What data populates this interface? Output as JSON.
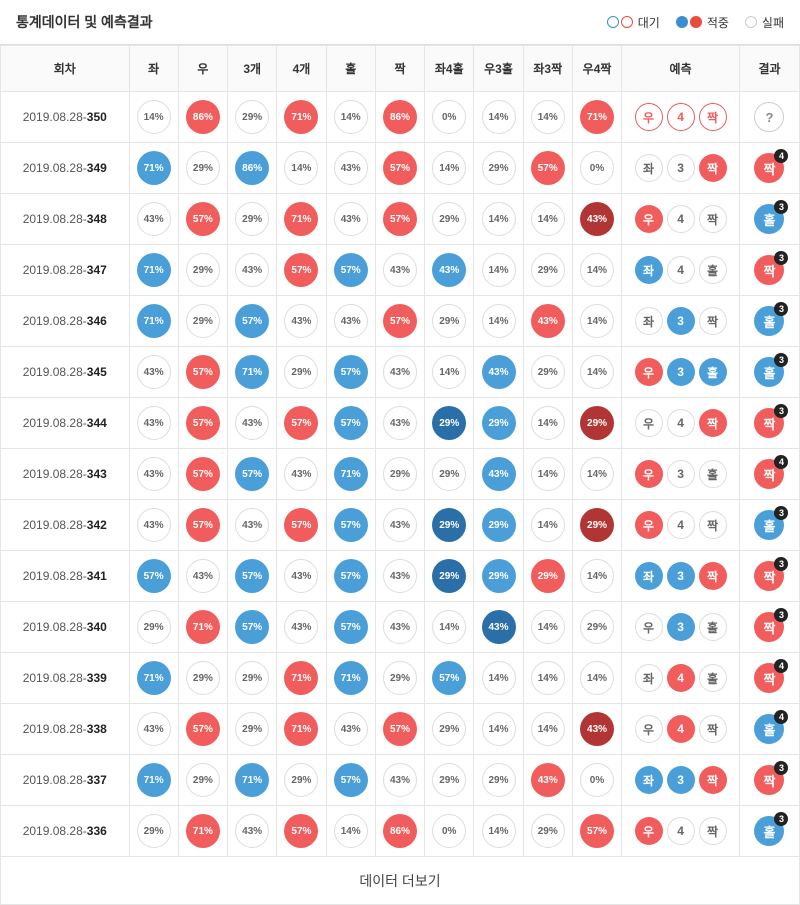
{
  "header": {
    "title": "통계데이터 및 예측결과",
    "legend": [
      {
        "label": "대기",
        "circles": [
          "outline-blue",
          "outline-red"
        ]
      },
      {
        "label": "적중",
        "circles": [
          "fill-blue",
          "fill-red"
        ]
      },
      {
        "label": "실패",
        "circles": [
          "outline-gray"
        ]
      }
    ]
  },
  "columns": {
    "round": "회차",
    "left": "좌",
    "right": "우",
    "three": "3개",
    "four": "4개",
    "odd": "홀",
    "even": "짝",
    "l4o": "좌4홀",
    "r3o": "우3홀",
    "l3e": "좌3짝",
    "r4e": "우4짝",
    "pred": "예측",
    "res": "결과"
  },
  "footer": {
    "more": "데이터 더보기"
  },
  "colors": {
    "red": "#f15c5c",
    "blue": "#4a9fd8",
    "darkred": "#b23535",
    "darkblue": "#2a6fa8",
    "border": "#e5e5e5",
    "badge_bg": "#222222"
  },
  "rows": [
    {
      "date": "2019.08.28",
      "num": "350",
      "cells": [
        {
          "v": "14%",
          "s": "plain"
        },
        {
          "v": "86%",
          "s": "red"
        },
        {
          "v": "29%",
          "s": "plain"
        },
        {
          "v": "71%",
          "s": "red"
        },
        {
          "v": "14%",
          "s": "plain"
        },
        {
          "v": "86%",
          "s": "red"
        },
        {
          "v": "0%",
          "s": "plain"
        },
        {
          "v": "14%",
          "s": "plain"
        },
        {
          "v": "14%",
          "s": "plain"
        },
        {
          "v": "71%",
          "s": "red"
        }
      ],
      "pred": [
        {
          "t": "우",
          "s": "red-outline"
        },
        {
          "t": "4",
          "s": "red-outline"
        },
        {
          "t": "짝",
          "s": "red-outline"
        }
      ],
      "res": {
        "t": "?",
        "s": "plain",
        "badge": ""
      }
    },
    {
      "date": "2019.08.28",
      "num": "349",
      "cells": [
        {
          "v": "71%",
          "s": "blue"
        },
        {
          "v": "29%",
          "s": "plain"
        },
        {
          "v": "86%",
          "s": "blue"
        },
        {
          "v": "14%",
          "s": "plain"
        },
        {
          "v": "43%",
          "s": "plain"
        },
        {
          "v": "57%",
          "s": "red"
        },
        {
          "v": "14%",
          "s": "plain"
        },
        {
          "v": "29%",
          "s": "plain"
        },
        {
          "v": "57%",
          "s": "red"
        },
        {
          "v": "0%",
          "s": "plain"
        }
      ],
      "pred": [
        {
          "t": "좌",
          "s": "plain"
        },
        {
          "t": "3",
          "s": "plain"
        },
        {
          "t": "짝",
          "s": "red-fill"
        }
      ],
      "res": {
        "t": "짝",
        "s": "red",
        "badge": "4"
      }
    },
    {
      "date": "2019.08.28",
      "num": "348",
      "cells": [
        {
          "v": "43%",
          "s": "plain"
        },
        {
          "v": "57%",
          "s": "red"
        },
        {
          "v": "29%",
          "s": "plain"
        },
        {
          "v": "71%",
          "s": "red"
        },
        {
          "v": "43%",
          "s": "plain"
        },
        {
          "v": "57%",
          "s": "red"
        },
        {
          "v": "29%",
          "s": "plain"
        },
        {
          "v": "14%",
          "s": "plain"
        },
        {
          "v": "14%",
          "s": "plain"
        },
        {
          "v": "43%",
          "s": "darkred"
        }
      ],
      "pred": [
        {
          "t": "우",
          "s": "red-fill"
        },
        {
          "t": "4",
          "s": "plain"
        },
        {
          "t": "짝",
          "s": "plain"
        }
      ],
      "res": {
        "t": "홀",
        "s": "blue",
        "badge": "3"
      }
    },
    {
      "date": "2019.08.28",
      "num": "347",
      "cells": [
        {
          "v": "71%",
          "s": "blue"
        },
        {
          "v": "29%",
          "s": "plain"
        },
        {
          "v": "43%",
          "s": "plain"
        },
        {
          "v": "57%",
          "s": "red"
        },
        {
          "v": "57%",
          "s": "blue"
        },
        {
          "v": "43%",
          "s": "plain"
        },
        {
          "v": "43%",
          "s": "blue"
        },
        {
          "v": "14%",
          "s": "plain"
        },
        {
          "v": "29%",
          "s": "plain"
        },
        {
          "v": "14%",
          "s": "plain"
        }
      ],
      "pred": [
        {
          "t": "좌",
          "s": "blue-fill"
        },
        {
          "t": "4",
          "s": "plain"
        },
        {
          "t": "홀",
          "s": "plain"
        }
      ],
      "res": {
        "t": "짝",
        "s": "red",
        "badge": "3"
      }
    },
    {
      "date": "2019.08.28",
      "num": "346",
      "cells": [
        {
          "v": "71%",
          "s": "blue"
        },
        {
          "v": "29%",
          "s": "plain"
        },
        {
          "v": "57%",
          "s": "blue"
        },
        {
          "v": "43%",
          "s": "plain"
        },
        {
          "v": "43%",
          "s": "plain"
        },
        {
          "v": "57%",
          "s": "red"
        },
        {
          "v": "29%",
          "s": "plain"
        },
        {
          "v": "14%",
          "s": "plain"
        },
        {
          "v": "43%",
          "s": "red"
        },
        {
          "v": "14%",
          "s": "plain"
        }
      ],
      "pred": [
        {
          "t": "좌",
          "s": "plain"
        },
        {
          "t": "3",
          "s": "blue-fill"
        },
        {
          "t": "짝",
          "s": "plain"
        }
      ],
      "res": {
        "t": "홀",
        "s": "blue",
        "badge": "3"
      }
    },
    {
      "date": "2019.08.28",
      "num": "345",
      "cells": [
        {
          "v": "43%",
          "s": "plain"
        },
        {
          "v": "57%",
          "s": "red"
        },
        {
          "v": "71%",
          "s": "blue"
        },
        {
          "v": "29%",
          "s": "plain"
        },
        {
          "v": "57%",
          "s": "blue"
        },
        {
          "v": "43%",
          "s": "plain"
        },
        {
          "v": "14%",
          "s": "plain"
        },
        {
          "v": "43%",
          "s": "blue"
        },
        {
          "v": "29%",
          "s": "plain"
        },
        {
          "v": "14%",
          "s": "plain"
        }
      ],
      "pred": [
        {
          "t": "우",
          "s": "red-fill"
        },
        {
          "t": "3",
          "s": "blue-fill"
        },
        {
          "t": "홀",
          "s": "blue-fill"
        }
      ],
      "res": {
        "t": "홀",
        "s": "blue",
        "badge": "3"
      }
    },
    {
      "date": "2019.08.28",
      "num": "344",
      "cells": [
        {
          "v": "43%",
          "s": "plain"
        },
        {
          "v": "57%",
          "s": "red"
        },
        {
          "v": "43%",
          "s": "plain"
        },
        {
          "v": "57%",
          "s": "red"
        },
        {
          "v": "57%",
          "s": "blue"
        },
        {
          "v": "43%",
          "s": "plain"
        },
        {
          "v": "29%",
          "s": "darkblue"
        },
        {
          "v": "29%",
          "s": "blue"
        },
        {
          "v": "14%",
          "s": "plain"
        },
        {
          "v": "29%",
          "s": "darkred"
        }
      ],
      "pred": [
        {
          "t": "우",
          "s": "plain"
        },
        {
          "t": "4",
          "s": "plain"
        },
        {
          "t": "짝",
          "s": "red-fill"
        }
      ],
      "res": {
        "t": "짝",
        "s": "red",
        "badge": "3"
      }
    },
    {
      "date": "2019.08.28",
      "num": "343",
      "cells": [
        {
          "v": "43%",
          "s": "plain"
        },
        {
          "v": "57%",
          "s": "red"
        },
        {
          "v": "57%",
          "s": "blue"
        },
        {
          "v": "43%",
          "s": "plain"
        },
        {
          "v": "71%",
          "s": "blue"
        },
        {
          "v": "29%",
          "s": "plain"
        },
        {
          "v": "29%",
          "s": "plain"
        },
        {
          "v": "43%",
          "s": "blue"
        },
        {
          "v": "14%",
          "s": "plain"
        },
        {
          "v": "14%",
          "s": "plain"
        }
      ],
      "pred": [
        {
          "t": "우",
          "s": "red-fill"
        },
        {
          "t": "3",
          "s": "plain"
        },
        {
          "t": "홀",
          "s": "plain"
        }
      ],
      "res": {
        "t": "짝",
        "s": "red",
        "badge": "4"
      }
    },
    {
      "date": "2019.08.28",
      "num": "342",
      "cells": [
        {
          "v": "43%",
          "s": "plain"
        },
        {
          "v": "57%",
          "s": "red"
        },
        {
          "v": "43%",
          "s": "plain"
        },
        {
          "v": "57%",
          "s": "red"
        },
        {
          "v": "57%",
          "s": "blue"
        },
        {
          "v": "43%",
          "s": "plain"
        },
        {
          "v": "29%",
          "s": "darkblue"
        },
        {
          "v": "29%",
          "s": "blue"
        },
        {
          "v": "14%",
          "s": "plain"
        },
        {
          "v": "29%",
          "s": "darkred"
        }
      ],
      "pred": [
        {
          "t": "우",
          "s": "red-fill"
        },
        {
          "t": "4",
          "s": "plain"
        },
        {
          "t": "짝",
          "s": "plain"
        }
      ],
      "res": {
        "t": "홀",
        "s": "blue",
        "badge": "3"
      }
    },
    {
      "date": "2019.08.28",
      "num": "341",
      "cells": [
        {
          "v": "57%",
          "s": "blue"
        },
        {
          "v": "43%",
          "s": "plain"
        },
        {
          "v": "57%",
          "s": "blue"
        },
        {
          "v": "43%",
          "s": "plain"
        },
        {
          "v": "57%",
          "s": "blue"
        },
        {
          "v": "43%",
          "s": "plain"
        },
        {
          "v": "29%",
          "s": "darkblue"
        },
        {
          "v": "29%",
          "s": "blue"
        },
        {
          "v": "29%",
          "s": "red"
        },
        {
          "v": "14%",
          "s": "plain"
        }
      ],
      "pred": [
        {
          "t": "좌",
          "s": "blue-fill"
        },
        {
          "t": "3",
          "s": "blue-fill"
        },
        {
          "t": "짝",
          "s": "red-fill"
        }
      ],
      "res": {
        "t": "짝",
        "s": "red",
        "badge": "3"
      }
    },
    {
      "date": "2019.08.28",
      "num": "340",
      "cells": [
        {
          "v": "29%",
          "s": "plain"
        },
        {
          "v": "71%",
          "s": "red"
        },
        {
          "v": "57%",
          "s": "blue"
        },
        {
          "v": "43%",
          "s": "plain"
        },
        {
          "v": "57%",
          "s": "blue"
        },
        {
          "v": "43%",
          "s": "plain"
        },
        {
          "v": "14%",
          "s": "plain"
        },
        {
          "v": "43%",
          "s": "darkblue"
        },
        {
          "v": "14%",
          "s": "plain"
        },
        {
          "v": "29%",
          "s": "plain"
        }
      ],
      "pred": [
        {
          "t": "우",
          "s": "plain"
        },
        {
          "t": "3",
          "s": "blue-fill"
        },
        {
          "t": "홀",
          "s": "plain"
        }
      ],
      "res": {
        "t": "짝",
        "s": "red",
        "badge": "3"
      }
    },
    {
      "date": "2019.08.28",
      "num": "339",
      "cells": [
        {
          "v": "71%",
          "s": "blue"
        },
        {
          "v": "29%",
          "s": "plain"
        },
        {
          "v": "29%",
          "s": "plain"
        },
        {
          "v": "71%",
          "s": "red"
        },
        {
          "v": "71%",
          "s": "blue"
        },
        {
          "v": "29%",
          "s": "plain"
        },
        {
          "v": "57%",
          "s": "blue"
        },
        {
          "v": "14%",
          "s": "plain"
        },
        {
          "v": "14%",
          "s": "plain"
        },
        {
          "v": "14%",
          "s": "plain"
        }
      ],
      "pred": [
        {
          "t": "좌",
          "s": "plain"
        },
        {
          "t": "4",
          "s": "red-fill"
        },
        {
          "t": "홀",
          "s": "plain"
        }
      ],
      "res": {
        "t": "짝",
        "s": "red",
        "badge": "4"
      }
    },
    {
      "date": "2019.08.28",
      "num": "338",
      "cells": [
        {
          "v": "43%",
          "s": "plain"
        },
        {
          "v": "57%",
          "s": "red"
        },
        {
          "v": "29%",
          "s": "plain"
        },
        {
          "v": "71%",
          "s": "red"
        },
        {
          "v": "43%",
          "s": "plain"
        },
        {
          "v": "57%",
          "s": "red"
        },
        {
          "v": "29%",
          "s": "plain"
        },
        {
          "v": "14%",
          "s": "plain"
        },
        {
          "v": "14%",
          "s": "plain"
        },
        {
          "v": "43%",
          "s": "darkred"
        }
      ],
      "pred": [
        {
          "t": "우",
          "s": "plain"
        },
        {
          "t": "4",
          "s": "red-fill"
        },
        {
          "t": "짝",
          "s": "plain"
        }
      ],
      "res": {
        "t": "홀",
        "s": "blue",
        "badge": "4"
      }
    },
    {
      "date": "2019.08.28",
      "num": "337",
      "cells": [
        {
          "v": "71%",
          "s": "blue"
        },
        {
          "v": "29%",
          "s": "plain"
        },
        {
          "v": "71%",
          "s": "blue"
        },
        {
          "v": "29%",
          "s": "plain"
        },
        {
          "v": "57%",
          "s": "blue"
        },
        {
          "v": "43%",
          "s": "plain"
        },
        {
          "v": "29%",
          "s": "plain"
        },
        {
          "v": "29%",
          "s": "plain"
        },
        {
          "v": "43%",
          "s": "red"
        },
        {
          "v": "0%",
          "s": "plain"
        }
      ],
      "pred": [
        {
          "t": "좌",
          "s": "blue-fill"
        },
        {
          "t": "3",
          "s": "blue-fill"
        },
        {
          "t": "짝",
          "s": "red-fill"
        }
      ],
      "res": {
        "t": "짝",
        "s": "red",
        "badge": "3"
      }
    },
    {
      "date": "2019.08.28",
      "num": "336",
      "cells": [
        {
          "v": "29%",
          "s": "plain"
        },
        {
          "v": "71%",
          "s": "red"
        },
        {
          "v": "43%",
          "s": "plain"
        },
        {
          "v": "57%",
          "s": "red"
        },
        {
          "v": "14%",
          "s": "plain"
        },
        {
          "v": "86%",
          "s": "red"
        },
        {
          "v": "0%",
          "s": "plain"
        },
        {
          "v": "14%",
          "s": "plain"
        },
        {
          "v": "29%",
          "s": "plain"
        },
        {
          "v": "57%",
          "s": "red"
        }
      ],
      "pred": [
        {
          "t": "우",
          "s": "red-fill"
        },
        {
          "t": "4",
          "s": "plain"
        },
        {
          "t": "짝",
          "s": "plain"
        }
      ],
      "res": {
        "t": "홀",
        "s": "blue",
        "badge": "3"
      }
    }
  ]
}
